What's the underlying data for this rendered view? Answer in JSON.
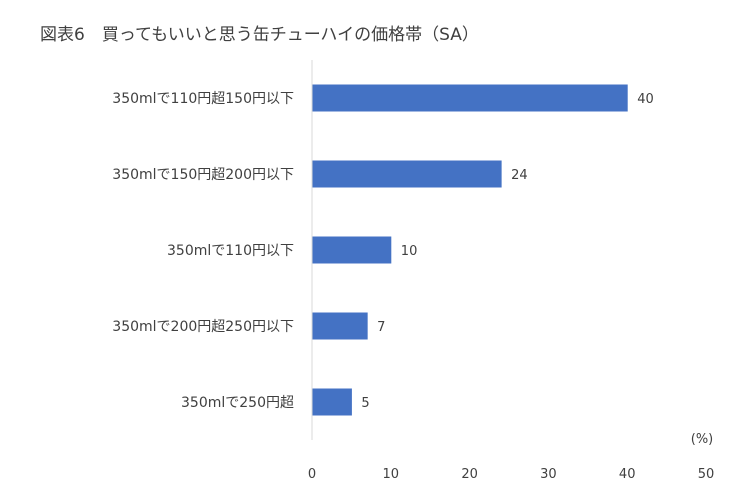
{
  "title": "図表6　買ってもいいと思う缶チューハイの価格帯（SA）",
  "chart_data": {
    "type": "bar",
    "orientation": "horizontal",
    "title": "図表6　買ってもいいと思う缶チューハイの価格帯（SA）",
    "categories": [
      "350mlで110円超150円以下",
      "350mlで150円超200円以下",
      "350mlで110円以下",
      "350mlで200円超250円以下",
      "350mlで250円超"
    ],
    "values": [
      40,
      24,
      10,
      7,
      5
    ],
    "xlim": [
      0,
      50
    ],
    "xticks": [
      0,
      10,
      20,
      30,
      40,
      50
    ],
    "unit": "(%)",
    "grid": false,
    "bar_color": "#4472C4",
    "legend": "none"
  }
}
